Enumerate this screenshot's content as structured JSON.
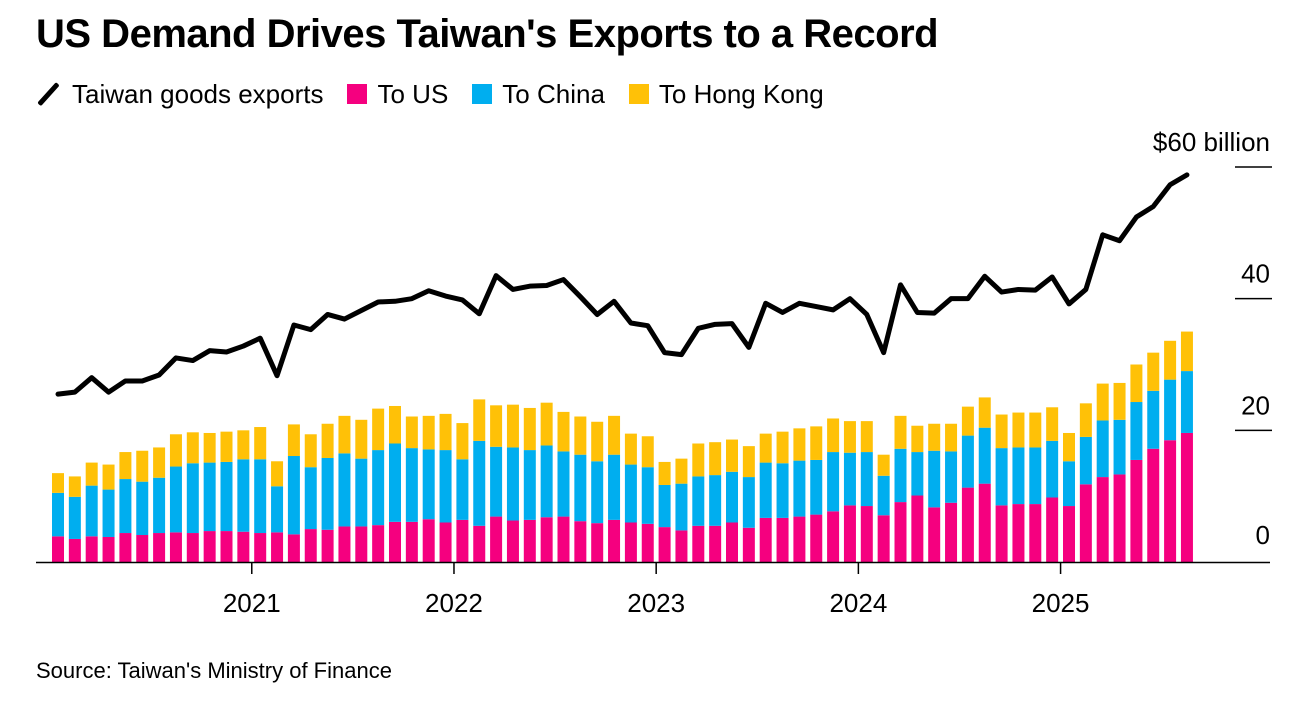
{
  "title": "US Demand Drives Taiwan's Exports to a Record",
  "legend": {
    "total": "Taiwan goods exports",
    "us": "To US",
    "china": "To China",
    "hk": "To Hong Kong"
  },
  "colors": {
    "us": "#f5007f",
    "china": "#00aeef",
    "hk": "#ffc107",
    "line": "#000000"
  },
  "source": "Source: Taiwan's Ministry of Finance",
  "chart_data": {
    "type": "bar",
    "stacked": true,
    "title": "US Demand Drives Taiwan's Exports to a Record",
    "xlabel": "",
    "ylabel": "",
    "ylim": [
      0,
      60
    ],
    "y_ticks": [
      {
        "value": 0,
        "label": "0"
      },
      {
        "value": 20,
        "label": "20"
      },
      {
        "value": 40,
        "label": "40"
      },
      {
        "value": 60,
        "label": "$60 billion"
      }
    ],
    "x_ticks": [
      {
        "index": 11,
        "label": "2021"
      },
      {
        "index": 23,
        "label": "2022"
      },
      {
        "index": 35,
        "label": "2023"
      },
      {
        "index": 47,
        "label": "2024"
      },
      {
        "index": 59,
        "label": "2025"
      }
    ],
    "start_month": "2020-02",
    "series": [
      {
        "name": "To US",
        "key": "us",
        "values": [
          3.9,
          3.5,
          3.9,
          3.8,
          4.4,
          4.1,
          4.4,
          4.5,
          4.4,
          4.7,
          4.7,
          4.6,
          4.4,
          4.5,
          4.2,
          5.0,
          4.9,
          5.4,
          5.4,
          5.6,
          6.1,
          6.1,
          6.5,
          6.0,
          6.4,
          5.5,
          6.9,
          6.3,
          6.4,
          6.8,
          6.9,
          6.2,
          5.9,
          6.4,
          6.0,
          5.8,
          5.3,
          4.8,
          5.5,
          5.5,
          6.0,
          5.2,
          6.7,
          6.7,
          6.9,
          7.2,
          7.7,
          8.6,
          8.5,
          7.1,
          9.1,
          10.1,
          8.3,
          9.0,
          11.3,
          11.9,
          8.6,
          8.8,
          8.8,
          9.8,
          8.5,
          11.8,
          12.9,
          13.3,
          15.5,
          17.2,
          18.5,
          19.6
        ]
      },
      {
        "name": "To China",
        "key": "china",
        "values": [
          6.6,
          6.4,
          7.7,
          7.2,
          8.2,
          8.1,
          8.4,
          10.0,
          10.6,
          10.4,
          10.5,
          11.0,
          11.2,
          7.0,
          11.9,
          9.4,
          10.9,
          11.1,
          10.3,
          11.4,
          11.9,
          11.2,
          10.6,
          11.0,
          9.2,
          12.9,
          10.6,
          11.1,
          10.6,
          10.9,
          9.9,
          10.1,
          9.4,
          9.9,
          8.8,
          8.6,
          6.4,
          7.1,
          7.5,
          7.7,
          7.7,
          7.7,
          8.4,
          8.3,
          8.5,
          8.3,
          9.0,
          8.0,
          8.2,
          6.0,
          8.1,
          6.6,
          8.6,
          7.8,
          7.9,
          8.5,
          8.7,
          8.6,
          8.6,
          8.6,
          6.8,
          7.2,
          8.6,
          8.3,
          8.8,
          8.8,
          9.2,
          9.4
        ]
      },
      {
        "name": "To Hong Kong",
        "key": "hk",
        "values": [
          3.0,
          3.1,
          3.5,
          3.8,
          4.1,
          4.7,
          4.6,
          4.9,
          4.7,
          4.5,
          4.6,
          4.4,
          4.9,
          3.8,
          4.8,
          5.0,
          5.2,
          5.7,
          5.9,
          6.3,
          5.7,
          4.8,
          5.1,
          5.5,
          5.5,
          6.3,
          6.3,
          6.5,
          6.4,
          6.5,
          6.0,
          5.8,
          6.0,
          5.9,
          4.7,
          4.7,
          3.5,
          3.8,
          5.0,
          5.0,
          4.9,
          4.7,
          4.4,
          4.8,
          4.9,
          5.1,
          5.1,
          4.8,
          4.7,
          3.2,
          5.0,
          4.0,
          4.1,
          4.2,
          4.4,
          4.6,
          5.1,
          5.3,
          5.3,
          5.1,
          4.3,
          5.1,
          5.6,
          5.6,
          5.7,
          5.8,
          5.9,
          6.0
        ]
      },
      {
        "name": "Taiwan goods exports",
        "key": "total",
        "type": "line",
        "values": [
          25.5,
          25.8,
          28.0,
          25.8,
          27.5,
          27.5,
          28.4,
          31.0,
          30.6,
          32.1,
          31.9,
          32.8,
          34.0,
          28.3,
          36.0,
          35.3,
          37.6,
          36.9,
          38.2,
          39.5,
          39.6,
          40.0,
          41.2,
          40.4,
          39.8,
          37.7,
          43.5,
          41.4,
          41.9,
          42.0,
          42.9,
          40.3,
          37.6,
          39.6,
          36.3,
          35.9,
          31.8,
          31.5,
          35.5,
          36.1,
          36.2,
          32.6,
          39.3,
          37.9,
          39.3,
          38.8,
          38.3,
          40.0,
          37.6,
          31.8,
          42.1,
          37.9,
          37.8,
          40.0,
          40.0,
          43.4,
          41.0,
          41.4,
          41.3,
          43.3,
          39.2,
          41.4,
          49.7,
          48.8,
          52.4,
          54.0,
          57.3,
          58.8
        ]
      }
    ]
  }
}
